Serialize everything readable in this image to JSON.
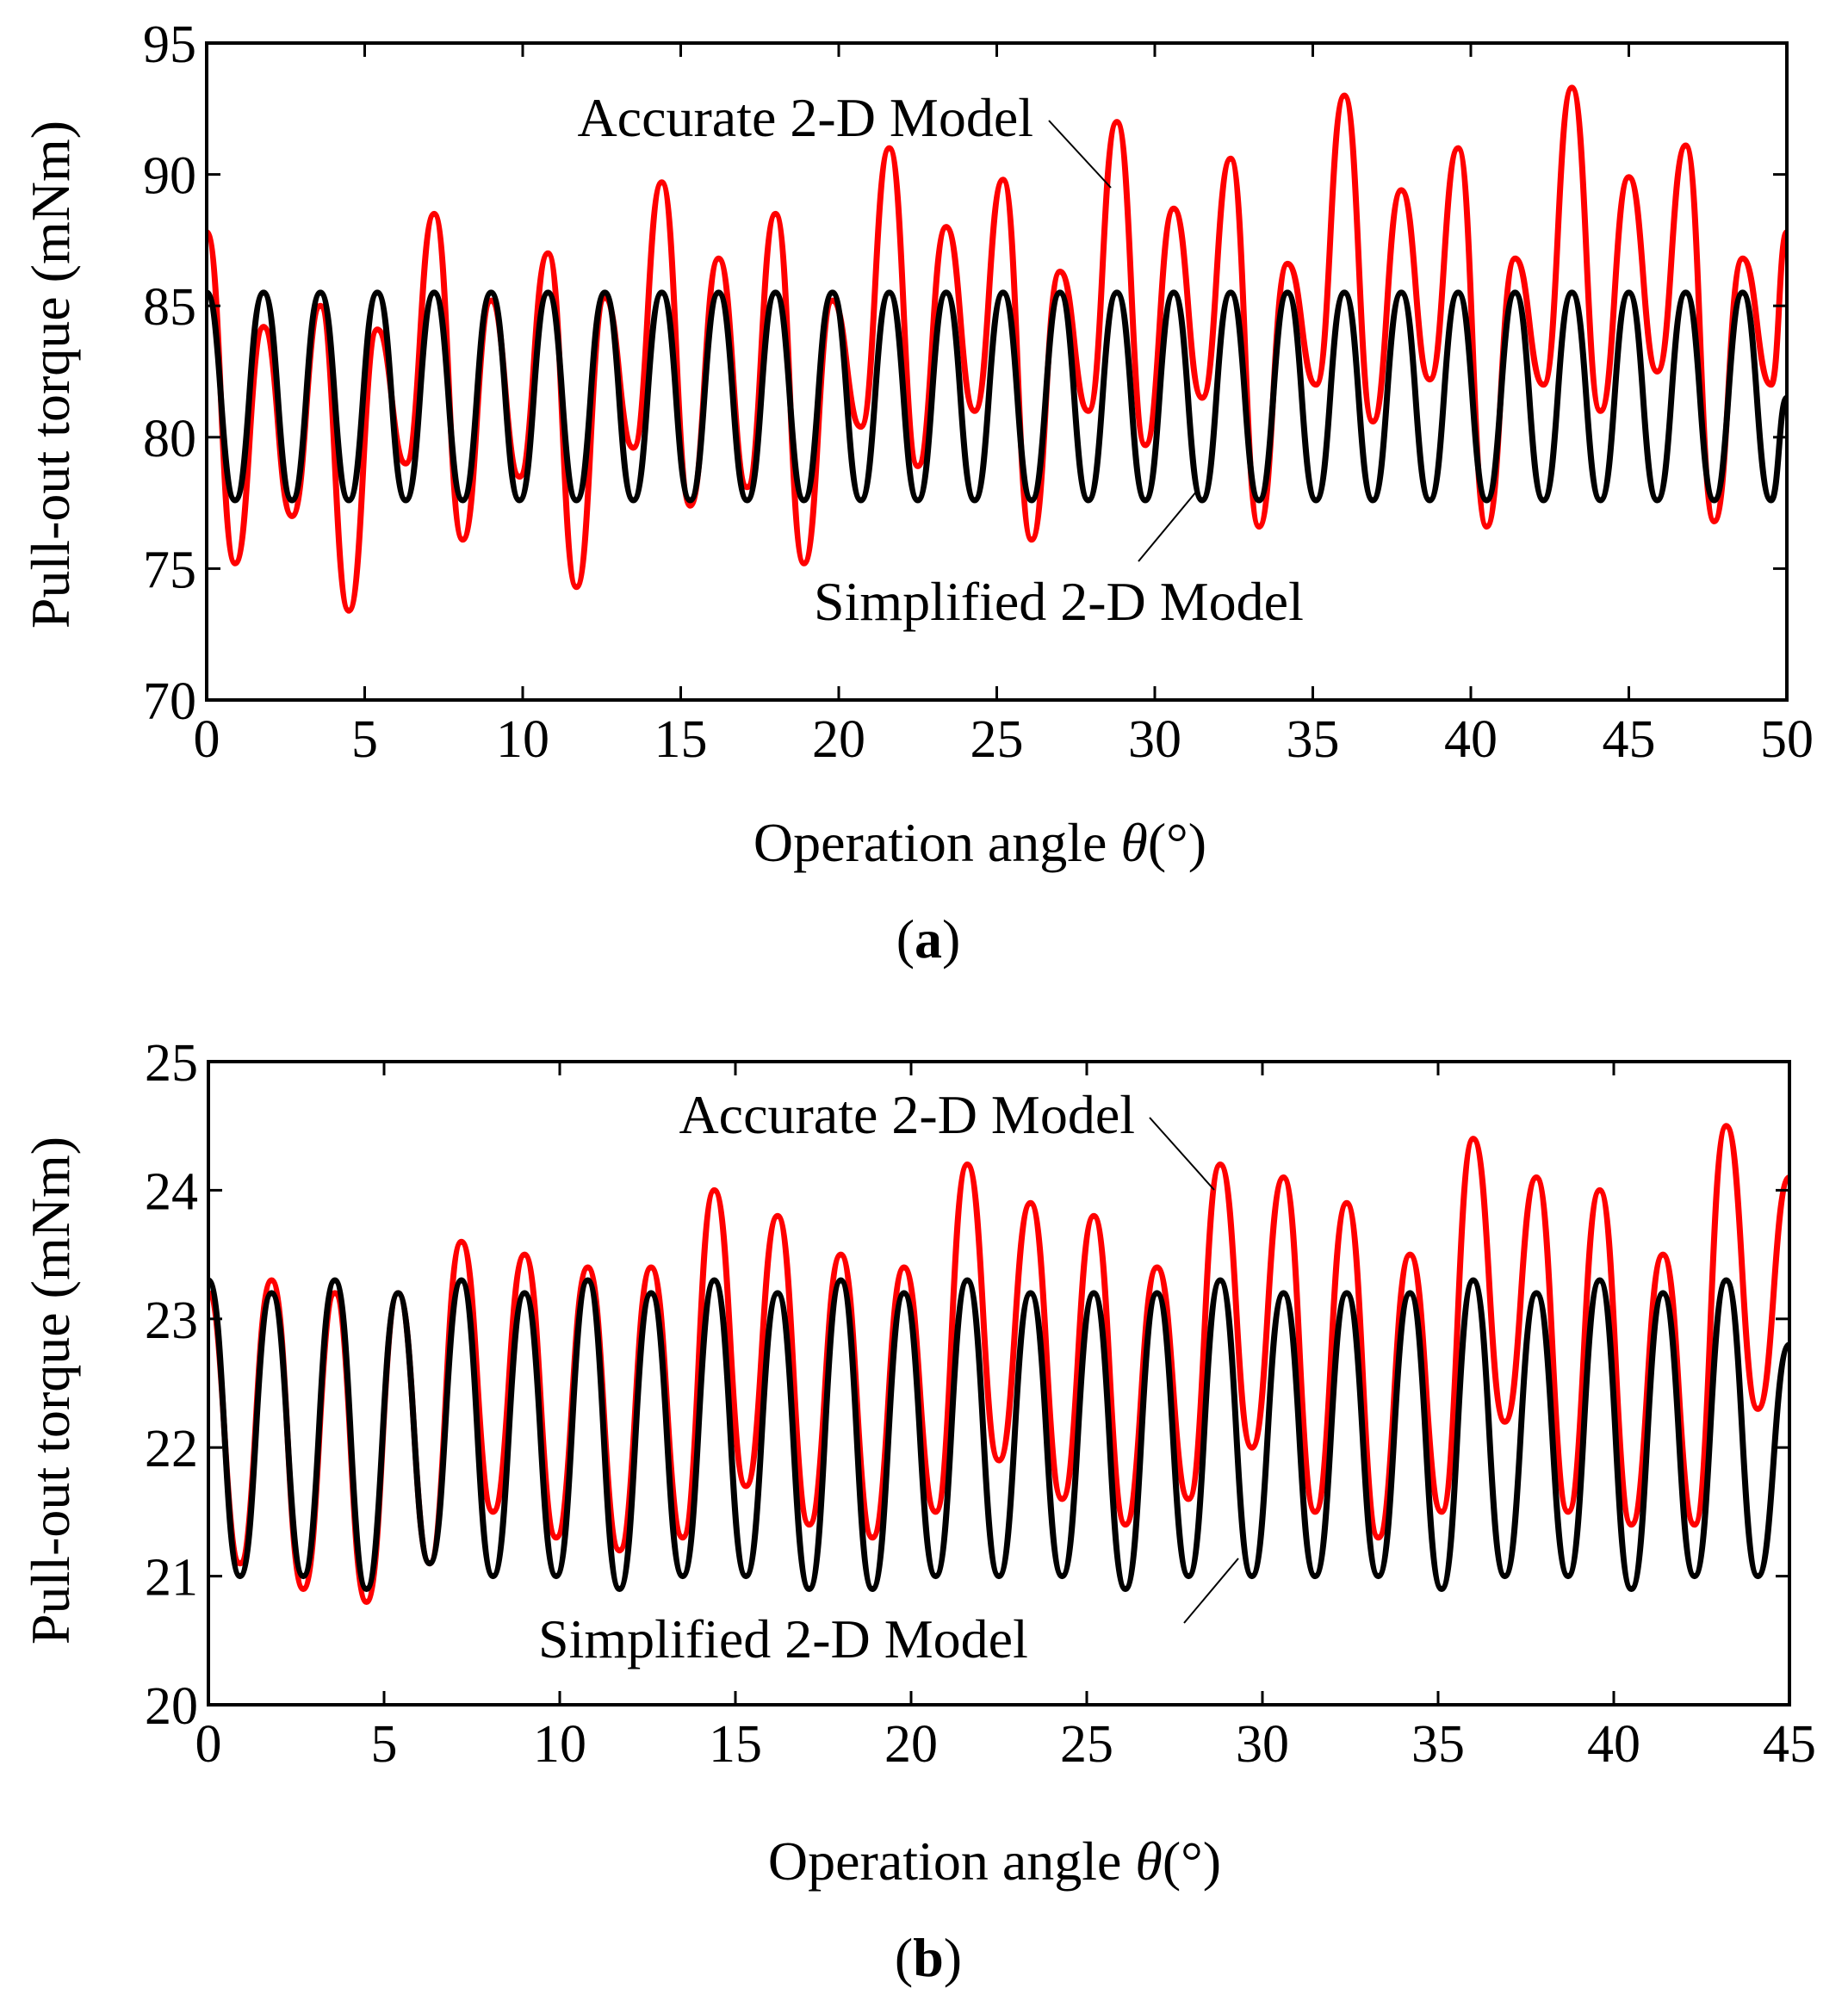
{
  "chart_data": [
    {
      "type": "line",
      "panel_label": "a",
      "xlabel_prefix": "Operation angle ",
      "xlabel_symbol": "θ",
      "xlabel_unit": "(°)",
      "ylabel": "Pull-out torque (mNm)",
      "xlim": [
        0,
        50
      ],
      "ylim": [
        70,
        95
      ],
      "xticks": [
        0,
        5,
        10,
        15,
        20,
        25,
        30,
        35,
        40,
        45,
        50
      ],
      "yticks": [
        70,
        75,
        80,
        85,
        90,
        95
      ],
      "grid": false,
      "annotations": [
        {
          "text": "Accurate 2-D Model",
          "series": "Accurate 2-D Model"
        },
        {
          "text": "Simplified 2-D Model",
          "series": "Simplified 2-D Model"
        }
      ],
      "series": [
        {
          "name": "Accurate 2-D Model",
          "color": "#ff0000",
          "x": [
            0,
            0.9,
            1.8,
            2.7,
            3.6,
            4.5,
            5.4,
            6.3,
            7.2,
            8.1,
            9.0,
            9.9,
            10.8,
            11.7,
            12.6,
            13.5,
            14.4,
            15.3,
            16.2,
            17.1,
            18.0,
            18.9,
            19.8,
            20.7,
            21.6,
            22.5,
            23.4,
            24.3,
            25.2,
            26.1,
            27.0,
            27.9,
            28.8,
            29.7,
            30.6,
            31.5,
            32.4,
            33.3,
            34.2,
            35.1,
            36.0,
            36.9,
            37.8,
            38.7,
            39.6,
            40.5,
            41.4,
            42.3,
            43.2,
            44.1,
            45.0,
            45.9,
            46.8,
            47.7,
            48.6,
            49.5,
            50.0
          ],
          "y": [
            87.8,
            75.2,
            84.2,
            77.0,
            85.0,
            73.4,
            84.1,
            79.0,
            88.5,
            76.1,
            85.2,
            78.5,
            87.0,
            74.3,
            85.3,
            79.6,
            89.7,
            77.4,
            86.8,
            78.1,
            88.5,
            75.2,
            85.2,
            80.4,
            91.0,
            78.9,
            88.0,
            81.0,
            89.8,
            76.1,
            86.3,
            81.0,
            92.0,
            79.7,
            88.7,
            81.5,
            90.6,
            76.6,
            86.6,
            82.0,
            93.0,
            80.6,
            89.4,
            82.2,
            91.0,
            76.6,
            86.8,
            82.0,
            93.3,
            81.0,
            89.9,
            82.5,
            91.1,
            76.8,
            86.8,
            82.0,
            87.8
          ]
        },
        {
          "name": "Simplified 2-D Model",
          "color": "#000000",
          "x": [
            0,
            0.9,
            1.8,
            2.7,
            3.6,
            4.5,
            5.4,
            6.3,
            7.2,
            8.1,
            9.0,
            9.9,
            10.8,
            11.7,
            12.6,
            13.5,
            14.4,
            15.3,
            16.2,
            17.1,
            18.0,
            18.9,
            19.8,
            20.7,
            21.6,
            22.5,
            23.4,
            24.3,
            25.2,
            26.1,
            27.0,
            27.9,
            28.8,
            29.7,
            30.6,
            31.5,
            32.4,
            33.3,
            34.2,
            35.1,
            36.0,
            36.9,
            37.8,
            38.7,
            39.6,
            40.5,
            41.4,
            42.3,
            43.2,
            44.1,
            45.0,
            45.9,
            46.8,
            47.7,
            48.6,
            49.5,
            50.0
          ],
          "y": [
            85.5,
            77.6,
            85.5,
            77.6,
            85.5,
            77.6,
            85.5,
            77.6,
            85.5,
            77.6,
            85.5,
            77.6,
            85.5,
            77.6,
            85.5,
            77.6,
            85.5,
            77.6,
            85.5,
            77.6,
            85.5,
            77.6,
            85.5,
            77.6,
            85.5,
            77.6,
            85.5,
            77.6,
            85.5,
            77.6,
            85.5,
            77.6,
            85.5,
            77.6,
            85.5,
            77.6,
            85.5,
            77.6,
            85.5,
            77.6,
            85.5,
            77.6,
            85.5,
            77.6,
            85.5,
            77.6,
            85.5,
            77.6,
            85.5,
            77.6,
            85.5,
            77.6,
            85.5,
            77.6,
            85.5,
            77.6,
            81.5
          ]
        }
      ]
    },
    {
      "type": "line",
      "panel_label": "b",
      "xlabel_prefix": "Operation angle ",
      "xlabel_symbol": "θ",
      "xlabel_unit": "(°)",
      "ylabel": "Pull-out torque (mNm)",
      "xlim": [
        0,
        45
      ],
      "ylim": [
        20,
        25
      ],
      "xticks": [
        0,
        5,
        10,
        15,
        20,
        25,
        30,
        35,
        40,
        45
      ],
      "yticks": [
        20,
        21,
        22,
        23,
        24,
        25
      ],
      "grid": false,
      "annotations": [
        {
          "text": "Accurate 2-D Model",
          "series": "Accurate 2-D Model"
        },
        {
          "text": "Simplified 2-D Model",
          "series": "Simplified 2-D Model"
        }
      ],
      "series": [
        {
          "name": "Accurate 2-D Model",
          "color": "#ff0000",
          "x": [
            0,
            0.9,
            1.8,
            2.7,
            3.6,
            4.5,
            5.4,
            6.3,
            7.2,
            8.1,
            9.0,
            9.9,
            10.8,
            11.7,
            12.6,
            13.5,
            14.4,
            15.3,
            16.2,
            17.1,
            18.0,
            18.9,
            19.8,
            20.7,
            21.6,
            22.5,
            23.4,
            24.3,
            25.2,
            26.1,
            27.0,
            27.9,
            28.8,
            29.7,
            30.6,
            31.5,
            32.4,
            33.3,
            34.2,
            35.1,
            36.0,
            36.9,
            37.8,
            38.7,
            39.6,
            40.5,
            41.4,
            42.3,
            43.2,
            44.1,
            45.0
          ],
          "y": [
            23.2,
            21.1,
            23.3,
            20.9,
            23.2,
            20.8,
            23.2,
            21.1,
            23.6,
            21.5,
            23.5,
            21.3,
            23.4,
            21.2,
            23.4,
            21.3,
            24.0,
            21.7,
            23.8,
            21.4,
            23.5,
            21.3,
            23.4,
            21.5,
            24.2,
            21.9,
            23.9,
            21.6,
            23.8,
            21.4,
            23.4,
            21.6,
            24.2,
            22.0,
            24.1,
            21.5,
            23.9,
            21.3,
            23.5,
            21.5,
            24.4,
            22.2,
            24.1,
            21.5,
            24.0,
            21.4,
            23.5,
            21.4,
            24.5,
            22.3,
            24.1
          ]
        },
        {
          "name": "Simplified 2-D Model",
          "color": "#000000",
          "x": [
            0,
            0.9,
            1.8,
            2.7,
            3.6,
            4.5,
            5.4,
            6.3,
            7.2,
            8.1,
            9.0,
            9.9,
            10.8,
            11.7,
            12.6,
            13.5,
            14.4,
            15.3,
            16.2,
            17.1,
            18.0,
            18.9,
            19.8,
            20.7,
            21.6,
            22.5,
            23.4,
            24.3,
            25.2,
            26.1,
            27.0,
            27.9,
            28.8,
            29.7,
            30.6,
            31.5,
            32.4,
            33.3,
            34.2,
            35.1,
            36.0,
            36.9,
            37.8,
            38.7,
            39.6,
            40.5,
            41.4,
            42.3,
            43.2,
            44.1,
            45.0
          ],
          "y": [
            23.3,
            21.0,
            23.2,
            21.0,
            23.3,
            20.9,
            23.2,
            21.1,
            23.3,
            21.0,
            23.2,
            21.0,
            23.3,
            20.9,
            23.2,
            21.0,
            23.3,
            21.0,
            23.2,
            20.9,
            23.3,
            20.9,
            23.2,
            21.0,
            23.3,
            21.0,
            23.2,
            21.0,
            23.2,
            20.9,
            23.2,
            21.0,
            23.3,
            21.0,
            23.2,
            21.0,
            23.2,
            21.0,
            23.2,
            20.9,
            23.3,
            21.0,
            23.2,
            21.0,
            23.3,
            20.9,
            23.2,
            21.0,
            23.3,
            21.0,
            22.8
          ]
        }
      ]
    }
  ]
}
